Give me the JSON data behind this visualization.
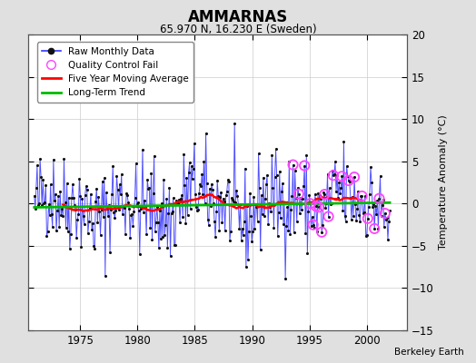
{
  "title": "AMMARNAS",
  "subtitle": "65.970 N, 16.230 E (Sweden)",
  "ylabel": "Temperature Anomaly (°C)",
  "attribution": "Berkeley Earth",
  "ylim": [
    -15,
    20
  ],
  "yticks": [
    -15,
    -10,
    -5,
    0,
    5,
    10,
    15,
    20
  ],
  "xlim": [
    1970.5,
    2003.5
  ],
  "xticks": [
    1975,
    1980,
    1985,
    1990,
    1995,
    2000
  ],
  "bg_color": "#e0e0e0",
  "plot_bg_color": "#ffffff",
  "raw_line_color": "#3333ff",
  "raw_dot_color": "#111111",
  "moving_avg_color": "#ff0000",
  "trend_color": "#00bb00",
  "qc_fail_color": "#ff44ff",
  "trend_slope": 0.018,
  "trend_intercept": 0.35,
  "seed": 42,
  "start_year": 1971.0,
  "n_months": 372
}
